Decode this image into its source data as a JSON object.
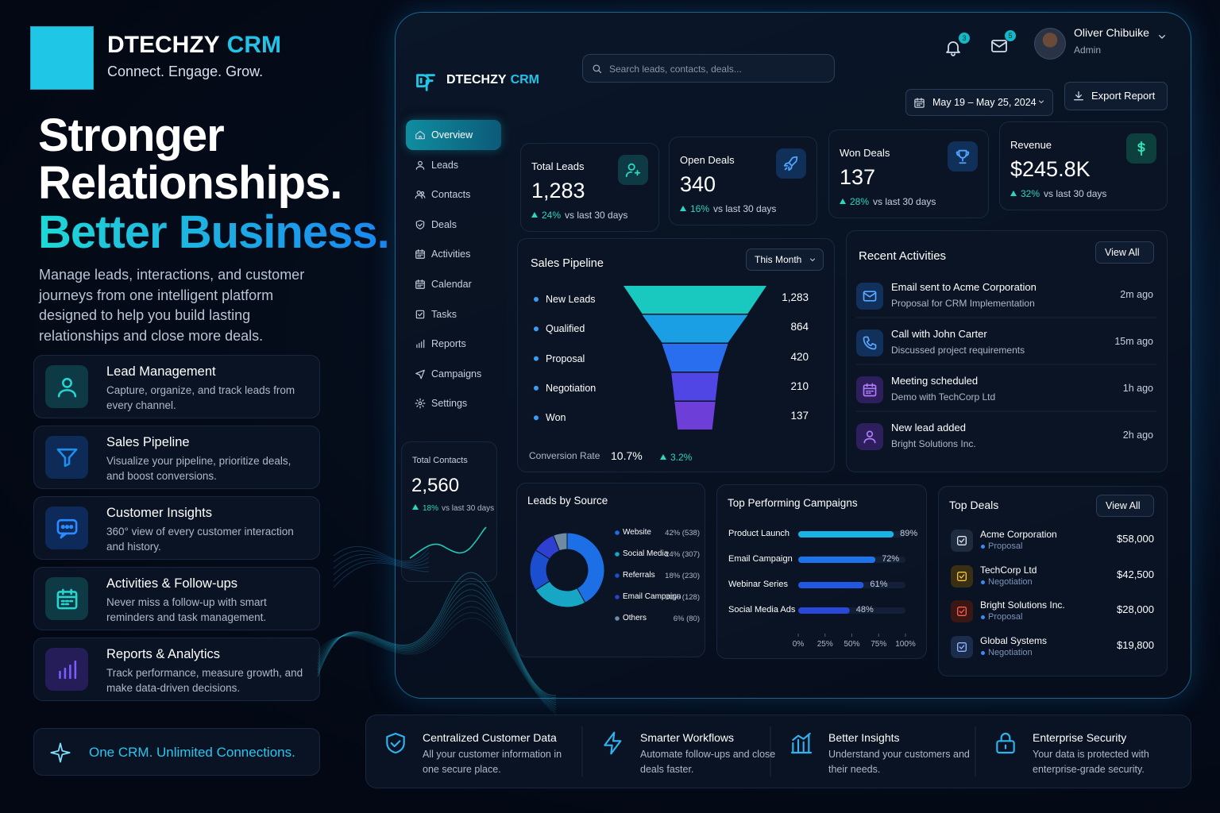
{
  "brand": {
    "name": "DTECHZY",
    "product": "CRM",
    "tagline": "Connect. Engage. Grow."
  },
  "hero": {
    "line_1": "Stronger",
    "line_2": "Relationships.",
    "line_3": "Better Business.",
    "description": "Manage leads, interactions, and customer journeys from one intelligent platform designed to help you build lasting relationships and close more deals."
  },
  "features": [
    {
      "title": "Lead Management",
      "text": "Capture, organize, and track leads from every channel."
    },
    {
      "title": "Sales Pipeline",
      "text": "Visualize your pipeline, prioritize deals, and boost conversions."
    },
    {
      "title": "Customer Insights",
      "text": "360° view of every customer interaction and history."
    },
    {
      "title": "Activities & Follow-ups",
      "text": "Never miss a follow-up with smart reminders and task management."
    },
    {
      "title": "Reports & Analytics",
      "text": "Track performance, measure growth, and make data-driven decisions."
    }
  ],
  "slogan": "One CRM. Unlimited Connections.",
  "dashboard": {
    "search_placeholder": "Search leads, contacts, deals...",
    "notifications": "3",
    "messages": "5",
    "user": {
      "name": "Oliver Chibuike",
      "role": "Admin"
    },
    "date_range": "May 19 – May 25, 2024",
    "export": "Export Report",
    "nav": [
      "Overview",
      "Leads",
      "Contacts",
      "Deals",
      "Activities",
      "Calendar",
      "Tasks",
      "Reports",
      "Campaigns",
      "Settings"
    ],
    "total_contacts": {
      "label": "Total Contacts",
      "value": "2,560",
      "change": "18%",
      "period": "vs last 30 days"
    },
    "kpis": [
      {
        "label": "Total Leads",
        "value": "1,283",
        "change": "24%",
        "period": "vs last 30 days"
      },
      {
        "label": "Open Deals",
        "value": "340",
        "change": "16%",
        "period": "vs last 30 days"
      },
      {
        "label": "Won Deals",
        "value": "137",
        "change": "28%",
        "period": "vs last 30 days"
      },
      {
        "label": "Revenue",
        "value": "$245.8K",
        "change": "32%",
        "period": "vs last 30 days"
      }
    ],
    "sales_pipeline": {
      "type": "funnel",
      "title": "Sales Pipeline",
      "filter": "This Month",
      "categories": [
        "New Leads",
        "Qualified",
        "Proposal",
        "Negotiation",
        "Won"
      ],
      "values": [
        1283,
        864,
        420,
        210,
        137
      ],
      "value_labels": [
        "1,283",
        "864",
        "420",
        "210",
        "137"
      ],
      "colors": [
        "#19c9c0",
        "#1a9fe4",
        "#2a6ef0",
        "#4f46e5",
        "#6d3fd8"
      ],
      "conversion_label": "Conversion Rate",
      "conversion_rate": "10.7%",
      "conversion_change": "3.2%"
    },
    "recent_activities": {
      "title": "Recent Activities",
      "action": "View All",
      "items": [
        {
          "title": "Email sent to Acme Corporation",
          "detail": "Proposal for CRM Implementation",
          "time": "2m ago"
        },
        {
          "title": "Call with John Carter",
          "detail": "Discussed project requirements",
          "time": "15m ago"
        },
        {
          "title": "Meeting scheduled",
          "detail": "Demo with TechCorp Ltd",
          "time": "1h ago"
        },
        {
          "title": "New lead added",
          "detail": "Bright Solutions Inc.",
          "time": "2h ago"
        }
      ]
    },
    "leads_by_source": {
      "type": "donut",
      "title": "Leads by Source",
      "categories": [
        "Website",
        "Social Media",
        "Referrals",
        "Email Campaign",
        "Others"
      ],
      "values": [
        42,
        24,
        18,
        10,
        6
      ],
      "value_labels": [
        "42% (538)",
        "24% (307)",
        "18% (230)",
        "10% (128)",
        "6% (80)"
      ],
      "colors": [
        "#1d6fe6",
        "#17a7c4",
        "#1b4fd0",
        "#2f3fd0",
        "#6f8aa3"
      ]
    },
    "top_campaigns": {
      "type": "bar",
      "title": "Top Performing Campaigns",
      "categories": [
        "Product Launch",
        "Email Campaign",
        "Webinar Series",
        "Social Media Ads"
      ],
      "values": [
        89,
        72,
        61,
        48
      ],
      "value_labels": [
        "89%",
        "72%",
        "61%",
        "48%"
      ],
      "colors": [
        "#19b3e6",
        "#1d74ea",
        "#2158e2",
        "#2a48d8"
      ],
      "xlim": [
        0,
        100
      ],
      "xticks": [
        {
          "value": 0,
          "label": "0%"
        },
        {
          "value": 25,
          "label": "25%"
        },
        {
          "value": 50,
          "label": "50%"
        },
        {
          "value": 75,
          "label": "75%"
        },
        {
          "value": 100,
          "label": "100%"
        }
      ]
    },
    "top_deals": {
      "title": "Top Deals",
      "action": "View All",
      "items": [
        {
          "company": "Acme Corporation",
          "stage": "Proposal",
          "amount": "$58,000"
        },
        {
          "company": "TechCorp Ltd",
          "stage": "Negotiation",
          "amount": "$42,500"
        },
        {
          "company": "Bright Solutions Inc.",
          "stage": "Proposal",
          "amount": "$28,000"
        },
        {
          "company": "Global Systems",
          "stage": "Negotiation",
          "amount": "$19,800"
        }
      ]
    }
  },
  "benefits": [
    {
      "title": "Centralized Customer Data",
      "text": "All your customer information in one secure place."
    },
    {
      "title": "Smarter Workflows",
      "text": "Automate follow-ups and close deals faster."
    },
    {
      "title": "Better Insights",
      "text": "Understand your customers and their needs."
    },
    {
      "title": "Enterprise Security",
      "text": "Your data is protected with enterprise-grade security."
    }
  ]
}
